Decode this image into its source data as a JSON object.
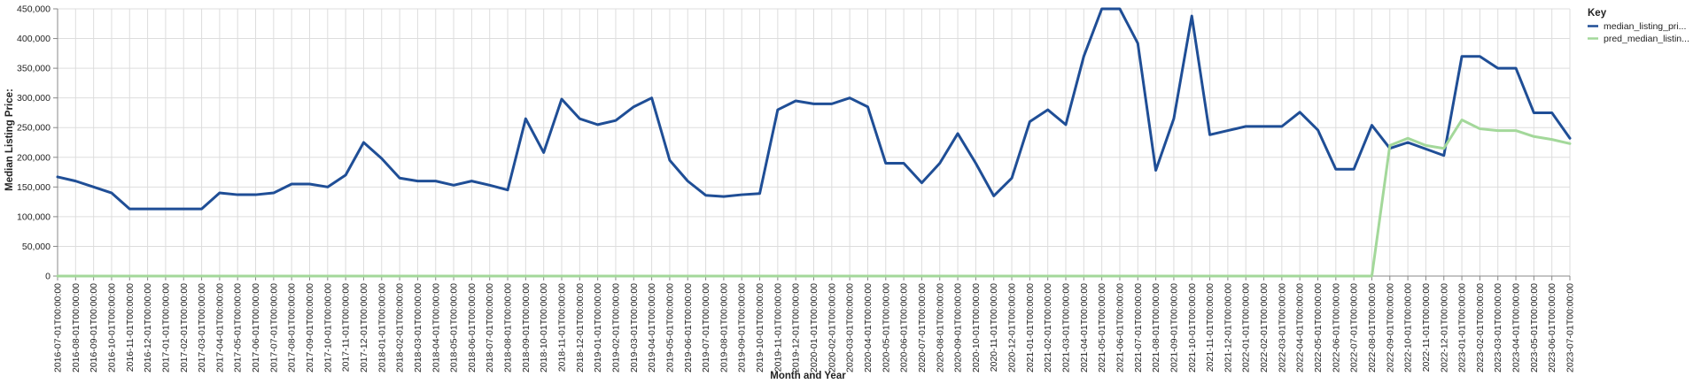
{
  "chart_data": {
    "type": "line",
    "xlabel": "Month and Year",
    "ylabel": "Median Listing Price:",
    "ylim": [
      0,
      450000
    ],
    "yticks": [
      "0",
      "50,000",
      "100,000",
      "150,000",
      "200,000",
      "250,000",
      "300,000",
      "350,000",
      "400,000",
      "450,000"
    ],
    "grid": true,
    "legend_position": "top-right",
    "legend_title": "Key",
    "x": [
      "2016-07-01T00:00:00",
      "2016-08-01T00:00:00",
      "2016-09-01T00:00:00",
      "2016-10-01T00:00:00",
      "2016-11-01T00:00:00",
      "2016-12-01T00:00:00",
      "2017-01-01T00:00:00",
      "2017-02-01T00:00:00",
      "2017-03-01T00:00:00",
      "2017-04-01T00:00:00",
      "2017-05-01T00:00:00",
      "2017-06-01T00:00:00",
      "2017-07-01T00:00:00",
      "2017-08-01T00:00:00",
      "2017-09-01T00:00:00",
      "2017-10-01T00:00:00",
      "2017-11-01T00:00:00",
      "2017-12-01T00:00:00",
      "2018-01-01T00:00:00",
      "2018-02-01T00:00:00",
      "2018-03-01T00:00:00",
      "2018-04-01T00:00:00",
      "2018-05-01T00:00:00",
      "2018-06-01T00:00:00",
      "2018-07-01T00:00:00",
      "2018-08-01T00:00:00",
      "2018-09-01T00:00:00",
      "2018-10-01T00:00:00",
      "2018-11-01T00:00:00",
      "2018-12-01T00:00:00",
      "2019-01-01T00:00:00",
      "2019-02-01T00:00:00",
      "2019-03-01T00:00:00",
      "2019-04-01T00:00:00",
      "2019-05-01T00:00:00",
      "2019-06-01T00:00:00",
      "2019-07-01T00:00:00",
      "2019-08-01T00:00:00",
      "2019-09-01T00:00:00",
      "2019-10-01T00:00:00",
      "2019-11-01T00:00:00",
      "2019-12-01T00:00:00",
      "2020-01-01T00:00:00",
      "2020-02-01T00:00:00",
      "2020-03-01T00:00:00",
      "2020-04-01T00:00:00",
      "2020-05-01T00:00:00",
      "2020-06-01T00:00:00",
      "2020-07-01T00:00:00",
      "2020-08-01T00:00:00",
      "2020-09-01T00:00:00",
      "2020-10-01T00:00:00",
      "2020-11-01T00:00:00",
      "2020-12-01T00:00:00",
      "2021-01-01T00:00:00",
      "2021-02-01T00:00:00",
      "2021-03-01T00:00:00",
      "2021-04-01T00:00:00",
      "2021-05-01T00:00:00",
      "2021-06-01T00:00:00",
      "2021-07-01T00:00:00",
      "2021-08-01T00:00:00",
      "2021-09-01T00:00:00",
      "2021-10-01T00:00:00",
      "2021-11-01T00:00:00",
      "2021-12-01T00:00:00",
      "2022-01-01T00:00:00",
      "2022-02-01T00:00:00",
      "2022-03-01T00:00:00",
      "2022-04-01T00:00:00",
      "2022-05-01T00:00:00",
      "2022-06-01T00:00:00",
      "2022-07-01T00:00:00",
      "2022-08-01T00:00:00",
      "2022-09-01T00:00:00",
      "2022-10-01T00:00:00",
      "2022-11-01T00:00:00",
      "2022-12-01T00:00:00",
      "2023-01-01T00:00:00",
      "2023-02-01T00:00:00",
      "2023-03-01T00:00:00",
      "2023-04-01T00:00:00",
      "2023-05-01T00:00:00",
      "2023-06-01T00:00:00",
      "2023-07-01T00:00:00"
    ],
    "series": [
      {
        "name": "median_listing_pri...",
        "color": "#1f4e96",
        "values": [
          167000,
          160000,
          150000,
          140000,
          113000,
          113000,
          113000,
          113000,
          113000,
          140000,
          137000,
          137000,
          140000,
          155000,
          155000,
          150000,
          170000,
          225000,
          198000,
          165000,
          160000,
          160000,
          153000,
          160000,
          153000,
          145000,
          265000,
          208000,
          298000,
          265000,
          255000,
          262000,
          285000,
          300000,
          195000,
          160000,
          136000,
          134000,
          137000,
          139000,
          280000,
          295000,
          290000,
          290000,
          300000,
          285000,
          190000,
          190000,
          157000,
          190000,
          240000,
          190000,
          135000,
          165000,
          260000,
          280000,
          255000,
          370000,
          450000,
          450000,
          392000,
          178000,
          265000,
          438000,
          238000,
          245000,
          252000,
          252000,
          252000,
          276000,
          246000,
          180000,
          180000,
          254000,
          215000,
          225000,
          214000,
          203000,
          370000,
          370000,
          350000,
          350000,
          275000,
          275000,
          232000
        ]
      },
      {
        "name": "pred_median_listin...",
        "color": "#a3d89a",
        "values": [
          0,
          0,
          0,
          0,
          0,
          0,
          0,
          0,
          0,
          0,
          0,
          0,
          0,
          0,
          0,
          0,
          0,
          0,
          0,
          0,
          0,
          0,
          0,
          0,
          0,
          0,
          0,
          0,
          0,
          0,
          0,
          0,
          0,
          0,
          0,
          0,
          0,
          0,
          0,
          0,
          0,
          0,
          0,
          0,
          0,
          0,
          0,
          0,
          0,
          0,
          0,
          0,
          0,
          0,
          0,
          0,
          0,
          0,
          0,
          0,
          0,
          0,
          0,
          0,
          0,
          0,
          0,
          0,
          0,
          0,
          0,
          0,
          0,
          0,
          220000,
          232000,
          220000,
          215000,
          263000,
          248000,
          245000,
          245000,
          235000,
          230000,
          223000
        ]
      }
    ]
  }
}
